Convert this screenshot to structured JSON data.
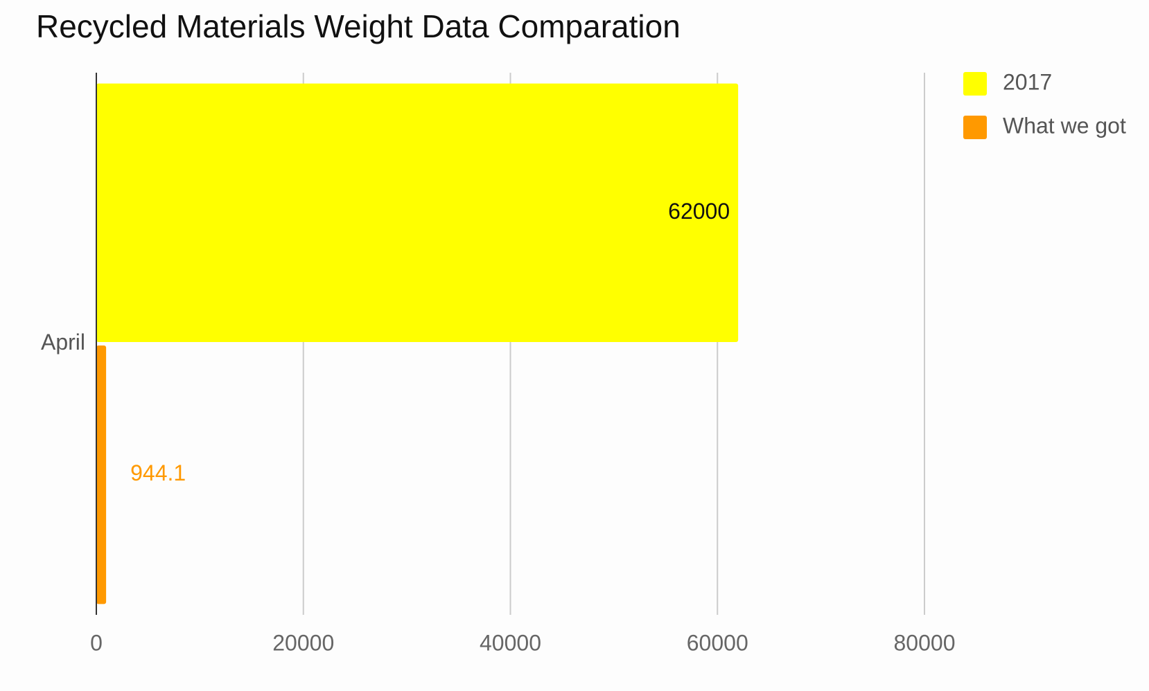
{
  "chart_data": {
    "type": "bar",
    "orientation": "horizontal",
    "title": "Recycled Materials Weight Data Comparation",
    "categories": [
      "April"
    ],
    "series": [
      {
        "name": "2017",
        "color": "#ffff00",
        "values": [
          62000
        ]
      },
      {
        "name": "What we got",
        "color": "#ff9900",
        "values": [
          944.1
        ]
      }
    ],
    "xlim": [
      0,
      80000
    ],
    "xticks": [
      0,
      20000,
      40000,
      60000,
      80000
    ],
    "grid": true,
    "legend": "top-right"
  }
}
